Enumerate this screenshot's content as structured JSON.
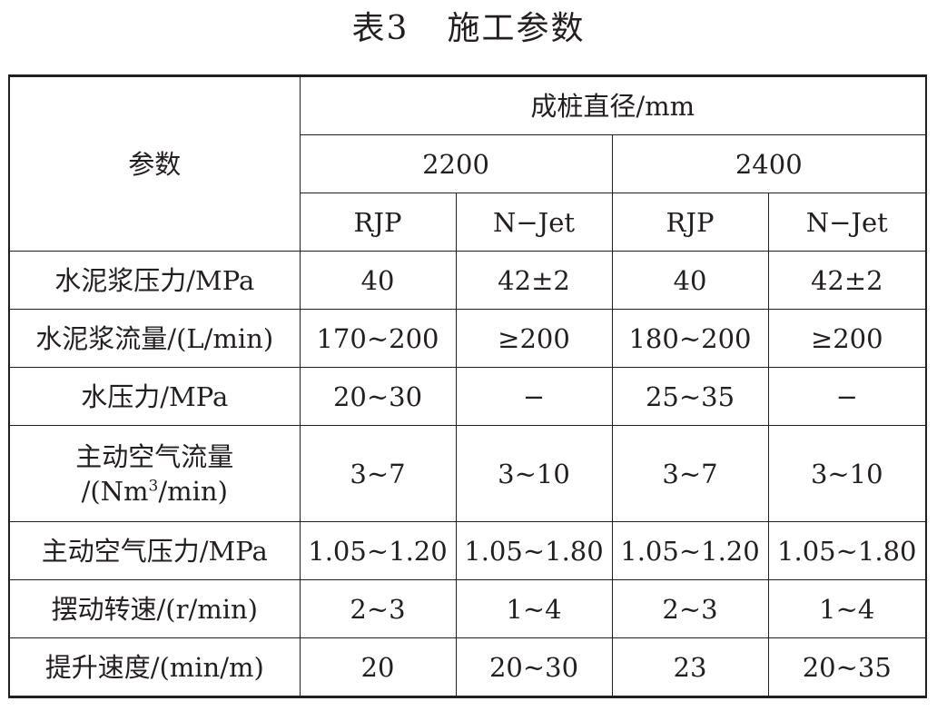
{
  "title": {
    "label": "表3",
    "text": "施工参数"
  },
  "table": {
    "param_header": "参数",
    "diameter_header": "成桩直径/mm",
    "diameters": [
      "2200",
      "2400"
    ],
    "methods": [
      "RJP",
      "N−Jet",
      "RJP",
      "N−Jet"
    ],
    "rows": [
      {
        "param": "水泥浆压力/MPa",
        "values": [
          "40",
          "42±2",
          "40",
          "42±2"
        ]
      },
      {
        "param": "水泥浆流量/(L/min)",
        "values": [
          "170~200",
          "≥200",
          "180~200",
          "≥200"
        ]
      },
      {
        "param": "水压力/MPa",
        "values": [
          "20~30",
          "−",
          "25~35",
          "−"
        ]
      },
      {
        "param": "主动空气流量",
        "param_line2_pre": "/(Nm",
        "param_line2_sup": "3",
        "param_line2_post": "/min)",
        "values": [
          "3~7",
          "3~10",
          "3~7",
          "3~10"
        ]
      },
      {
        "param": "主动空气压力/MPa",
        "values": [
          "1.05~1.20",
          "1.05~1.80",
          "1.05~1.20",
          "1.05~1.80"
        ]
      },
      {
        "param": "摆动转速/(r/min)",
        "values": [
          "2~3",
          "1~4",
          "2~3",
          "1~4"
        ]
      },
      {
        "param": "提升速度/(min/m)",
        "values": [
          "20",
          "20~30",
          "23",
          "20~35"
        ]
      }
    ]
  }
}
